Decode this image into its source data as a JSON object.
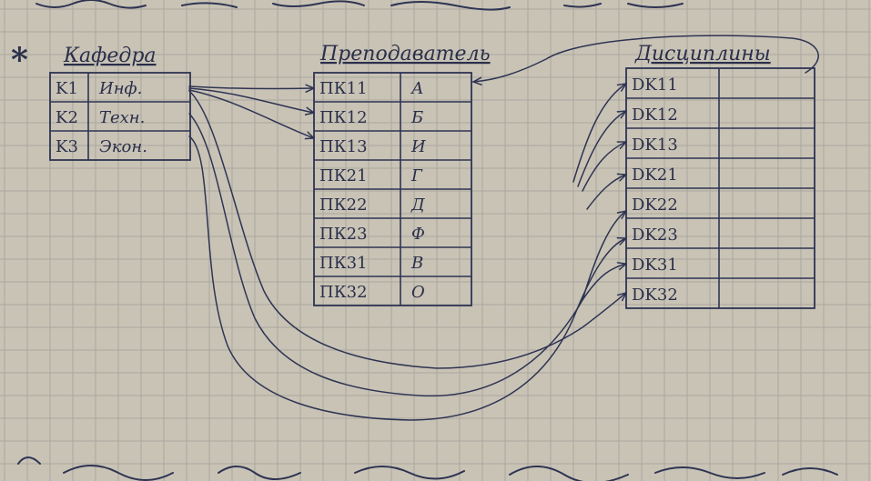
{
  "tables": {
    "kafedra": {
      "title": "Кафедра",
      "rows": [
        {
          "key": "K1",
          "value": "Инф."
        },
        {
          "key": "K2",
          "value": "Техн."
        },
        {
          "key": "K3",
          "value": "Экон."
        }
      ]
    },
    "prepodavatel": {
      "title": "Преподаватель",
      "rows": [
        {
          "key": "ПК11",
          "value": "А"
        },
        {
          "key": "ПК12",
          "value": "Б"
        },
        {
          "key": "ПК13",
          "value": "И"
        },
        {
          "key": "ПК21",
          "value": "Г"
        },
        {
          "key": "ПК22",
          "value": "Д"
        },
        {
          "key": "ПК23",
          "value": "Ф"
        },
        {
          "key": "ПК31",
          "value": "В"
        },
        {
          "key": "ПК32",
          "value": "О"
        }
      ]
    },
    "discipliny": {
      "title": "Дисциплины",
      "rows": [
        {
          "key": "DK11"
        },
        {
          "key": "DK12"
        },
        {
          "key": "DK13"
        },
        {
          "key": "DK21"
        },
        {
          "key": "DK22"
        },
        {
          "key": "DK23"
        },
        {
          "key": "DK31"
        },
        {
          "key": "DK32"
        }
      ]
    }
  },
  "marker": "*",
  "colors": {
    "paper": "#c9c3b6",
    "grid": "#aaa79f",
    "ink": "#2e3452"
  }
}
